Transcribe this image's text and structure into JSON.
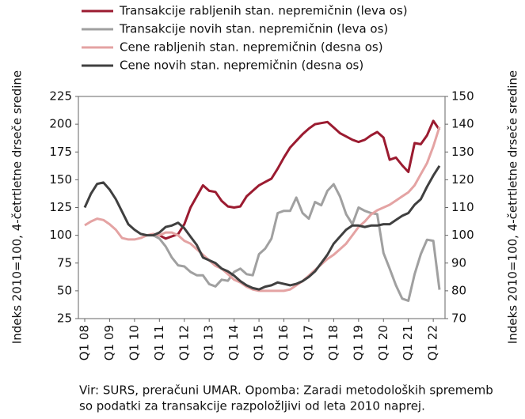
{
  "chart_data": {
    "type": "line",
    "categories": [
      "Q1 08",
      null,
      null,
      null,
      "Q1 09",
      null,
      null,
      null,
      "Q1 10",
      null,
      null,
      null,
      "Q1 11",
      null,
      null,
      null,
      "Q1 12",
      null,
      null,
      null,
      "Q1 13",
      null,
      null,
      null,
      "Q1 14",
      null,
      null,
      null,
      "Q1 15",
      null,
      null,
      null,
      "Q1 16",
      null,
      null,
      null,
      "Q1 17",
      null,
      null,
      null,
      "Q1 18",
      null,
      null,
      null,
      "Q1 19",
      null,
      null,
      null,
      "Q1 20",
      null,
      null,
      null,
      "Q1 21",
      null,
      null,
      null,
      "Q1 22",
      null
    ],
    "series": [
      {
        "name": "Transakcije rabljenih stan. nepremičnin (leva os)",
        "color": "#9b1b30",
        "values": [
          null,
          null,
          null,
          null,
          null,
          null,
          null,
          null,
          null,
          null,
          null,
          100,
          100,
          97,
          99,
          101,
          110,
          125,
          135,
          145,
          140,
          139,
          131,
          126,
          125,
          126,
          135,
          140,
          145,
          148,
          151,
          160,
          170,
          179,
          185,
          191,
          196,
          200,
          201,
          202,
          197,
          192,
          189,
          186,
          184,
          186,
          190,
          193,
          188,
          168,
          170,
          163,
          157,
          183,
          182,
          190,
          203,
          195
        ]
      },
      {
        "name": "Transakcije novih stan. nepremičnin (leva os)",
        "color": "#a0a0a0",
        "values": [
          null,
          null,
          null,
          null,
          null,
          null,
          null,
          null,
          null,
          null,
          null,
          100,
          97,
          90,
          80,
          73,
          72,
          67,
          64,
          64,
          56,
          54,
          60,
          59,
          67,
          70,
          65,
          64,
          83,
          88,
          97,
          120,
          122,
          122,
          134,
          120,
          115,
          130,
          127,
          140,
          146,
          135,
          119,
          110,
          125,
          122,
          120,
          119,
          84,
          70,
          55,
          43,
          41,
          65,
          83,
          96,
          95,
          51
        ]
      },
      {
        "name": "Cene rabljenih stan. nepremičnin (desna os)",
        "color": "#e4a3a3",
        "axis": "y2",
        "values": [
          103.6,
          105,
          106,
          105.5,
          104,
          102,
          99,
          98.5,
          98.5,
          99,
          100,
          100.5,
          100,
          101,
          101,
          100,
          98,
          97,
          95,
          93,
          91,
          89,
          88,
          86,
          84,
          83,
          81.5,
          80.5,
          80,
          80,
          80,
          80,
          80,
          80.5,
          82,
          83.5,
          85.5,
          87.5,
          89.5,
          91.5,
          93,
          95,
          97,
          100,
          103,
          105,
          107.5,
          109,
          110,
          111,
          112.5,
          114,
          115.5,
          118,
          122,
          126,
          132,
          139
        ]
      },
      {
        "name": "Cene novih stan. nepremičnin (desna os)",
        "color": "#404040",
        "axis": "y2",
        "values": [
          110,
          115,
          118.5,
          119,
          116.5,
          113,
          108.5,
          104,
          102,
          100.5,
          100,
          100,
          101,
          103,
          103.5,
          104.5,
          102.5,
          99.5,
          96.5,
          92,
          91,
          90,
          88,
          87,
          85.5,
          83.5,
          82,
          81,
          80.5,
          81.5,
          82,
          83,
          82.5,
          82,
          82.5,
          83.5,
          85,
          87,
          90,
          93,
          97,
          99.5,
          102,
          103.5,
          103.5,
          103,
          103.5,
          103.5,
          104,
          104,
          105.5,
          107,
          108,
          111,
          113,
          117.5,
          121.5,
          125
        ]
      }
    ],
    "ylim": [
      25,
      225
    ],
    "yticks": [
      25,
      50,
      75,
      100,
      125,
      150,
      175,
      200,
      225
    ],
    "y2lim": [
      70,
      150
    ],
    "y2ticks": [
      70,
      80,
      90,
      100,
      110,
      120,
      130,
      140,
      150
    ],
    "ylabel": "Indeks 2010=100, 4-četrtletne drseče sredine",
    "y2label": "Indeks 2010=100, 4-četrtletne drseče sredine",
    "grid": false,
    "legend": "top",
    "note": [
      "Vir: SURS, preračuni UMAR. Opomba: Zaradi metodoloških sprememb",
      "so podatki za transakcije razpoložljivi od leta 2010 naprej."
    ]
  }
}
